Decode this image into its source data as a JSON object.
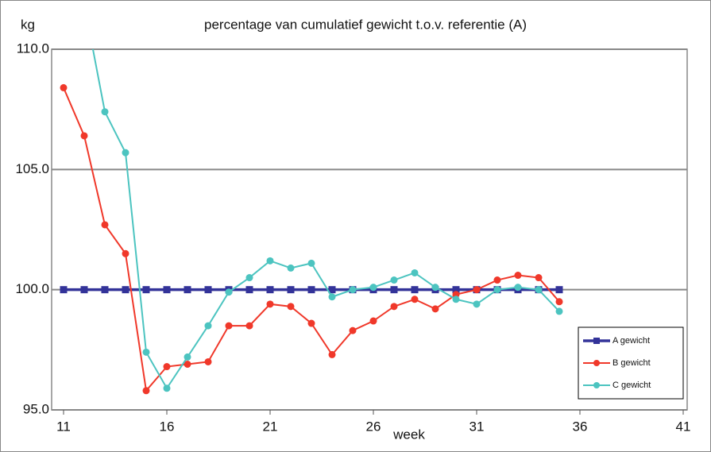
{
  "chart_data": {
    "type": "line",
    "title": "percentage van cumulatief  gewicht t.o.v. referentie (A)",
    "y_label": "kg",
    "x_label": "week",
    "x": [
      11,
      12,
      13,
      14,
      15,
      16,
      17,
      18,
      19,
      20,
      21,
      22,
      23,
      24,
      25,
      26,
      27,
      28,
      29,
      30,
      31,
      32,
      33,
      34,
      35
    ],
    "series": [
      {
        "name": "A gewicht",
        "color": "#333399",
        "marker": "square",
        "values": [
          100,
          100,
          100,
          100,
          100,
          100,
          100,
          100,
          100,
          100,
          100,
          100,
          100,
          100,
          100,
          100,
          100,
          100,
          100,
          100,
          100,
          100,
          100,
          100,
          100
        ]
      },
      {
        "name": "B gewicht",
        "color": "#f0382a",
        "marker": "circle",
        "values": [
          108.4,
          106.4,
          102.7,
          101.5,
          95.8,
          96.8,
          96.9,
          97.0,
          98.5,
          98.5,
          99.4,
          99.3,
          98.6,
          97.3,
          98.3,
          98.7,
          99.3,
          99.6,
          99.2,
          99.8,
          100.0,
          100.4,
          100.6,
          100.5,
          99.5
        ]
      },
      {
        "name": "C gewicht",
        "color": "#4cc4c0",
        "marker": "circle",
        "values": [
          null,
          111.9,
          107.4,
          105.7,
          97.4,
          95.9,
          97.2,
          98.5,
          99.9,
          100.5,
          101.2,
          100.9,
          101.1,
          99.7,
          100.0,
          100.1,
          100.4,
          100.7,
          100.1,
          99.6,
          99.4,
          100.0,
          100.1,
          100.0,
          99.1
        ]
      }
    ],
    "xlim": [
      11,
      41
    ],
    "xticks": [
      11,
      16,
      21,
      26,
      31,
      36,
      41
    ],
    "ylim": [
      95,
      110
    ],
    "yticks": [
      {
        "value": 95,
        "label": "95.0"
      },
      {
        "value": 100,
        "label": "100.0"
      },
      {
        "value": 105,
        "label": "105.0"
      },
      {
        "value": 110,
        "label": "110.0"
      }
    ],
    "grid": true,
    "legend": "bottom-right"
  }
}
